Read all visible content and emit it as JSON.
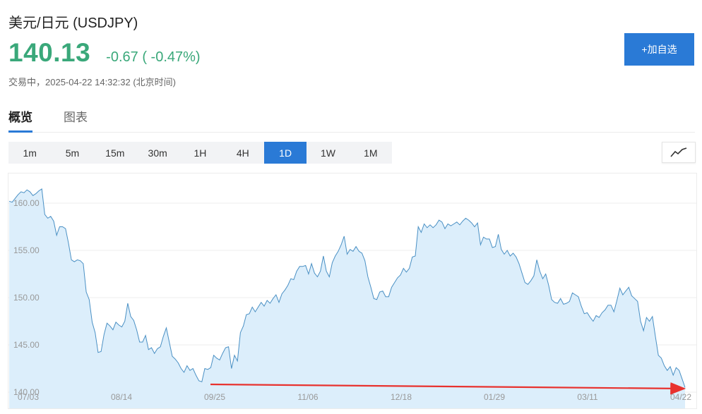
{
  "header": {
    "title": "美元/日元  (USDJPY)",
    "price": "140.13",
    "change": "-0.67 ( -0.47%)",
    "status": "交易中，2025-04-22 14:32:32 (北京时间)",
    "add_label": "+加自选"
  },
  "tabs": [
    {
      "label": "概览",
      "active": true
    },
    {
      "label": "图表",
      "active": false
    }
  ],
  "periods": [
    {
      "label": "1m"
    },
    {
      "label": "5m"
    },
    {
      "label": "15m"
    },
    {
      "label": "30m"
    },
    {
      "label": "1H"
    },
    {
      "label": "4H"
    },
    {
      "label": "1D",
      "active": true
    },
    {
      "label": "1W"
    },
    {
      "label": "1M"
    }
  ],
  "chart_type_icon": "line-chart-icon",
  "colors": {
    "up_green": "#3aa87a",
    "accent": "#2a7ad6",
    "line": "#4a90c4",
    "area": "#dceefb",
    "arrow": "#e8322e"
  },
  "chart_data": {
    "type": "area",
    "ylim": [
      140,
      162
    ],
    "y_ticks": [
      "160.00",
      "155.00",
      "150.00",
      "145.00",
      "140.00"
    ],
    "x_ticks": [
      "07/03",
      "08/14",
      "09/25",
      "11/06",
      "12/18",
      "01/29",
      "03/11",
      "04/22"
    ],
    "grid": true,
    "series": [
      {
        "values": [
          160.2,
          160.1,
          160.5,
          160.9,
          161.2,
          161.1,
          161.4,
          161.2,
          160.8,
          161.0,
          161.3,
          161.5,
          158.8,
          158.4,
          158.6,
          158.1,
          156.6,
          157.5,
          157.5,
          157.3,
          155.8,
          154.0,
          153.8,
          154.0,
          153.9,
          153.6,
          150.6,
          149.8,
          147.4,
          146.3,
          144.2,
          144.3,
          146.1,
          147.3,
          147.0,
          146.6,
          147.4,
          147.1,
          146.9,
          147.5,
          149.4,
          148.0,
          147.6,
          146.6,
          145.3,
          145.3,
          146.0,
          144.5,
          144.7,
          144.1,
          144.6,
          144.8,
          145.9,
          146.8,
          145.3,
          143.8,
          143.5,
          143.1,
          142.5,
          142.1,
          142.8,
          142.3,
          142.5,
          141.8,
          141.2,
          141.1,
          142.5,
          142.4,
          142.6,
          143.9,
          143.6,
          143.4,
          144.1,
          144.7,
          144.8,
          142.5,
          143.9,
          143.3,
          146.3,
          147.0,
          148.2,
          148.3,
          149.0,
          148.5,
          149.0,
          149.5,
          149.1,
          149.7,
          149.4,
          149.9,
          150.3,
          149.5,
          150.4,
          150.8,
          151.3,
          152.0,
          151.9,
          152.8,
          153.3,
          153.3,
          153.4,
          152.5,
          153.6,
          152.6,
          152.2,
          152.8,
          154.4,
          152.8,
          152.2,
          153.7,
          154.4,
          154.9,
          155.6,
          156.5,
          154.6,
          155.1,
          154.9,
          155.4,
          154.9,
          154.7,
          153.9,
          152.2,
          151.1,
          149.9,
          149.8,
          150.6,
          150.7,
          150.1,
          150.1,
          151.1,
          151.6,
          152.1,
          152.4,
          153.1,
          152.7,
          153.1,
          154.3,
          154.4,
          157.5,
          156.9,
          157.8,
          157.4,
          157.7,
          157.4,
          157.7,
          158.2,
          158.0,
          157.3,
          157.8,
          157.6,
          157.8,
          158.0,
          157.7,
          158.1,
          158.4,
          158.2,
          157.9,
          157.5,
          157.9,
          155.6,
          156.4,
          156.2,
          156.2,
          155.3,
          155.4,
          156.7,
          155.1,
          154.6,
          155.0,
          154.4,
          154.7,
          154.3,
          153.6,
          152.6,
          151.6,
          151.4,
          151.8,
          152.3,
          154.0,
          152.8,
          152.0,
          152.5,
          151.3,
          149.8,
          149.5,
          149.4,
          149.9,
          149.3,
          149.4,
          149.6,
          150.5,
          150.3,
          150.1,
          149.1,
          148.3,
          148.4,
          147.9,
          147.5,
          148.1,
          147.9,
          148.4,
          148.7,
          149.2,
          149.2,
          148.5,
          149.7,
          151.0,
          150.3,
          150.7,
          151.1,
          150.2,
          149.9,
          149.6,
          147.5,
          146.5,
          147.9,
          147.5,
          148.0,
          145.9,
          143.9,
          143.6,
          142.8,
          142.3,
          142.7,
          141.8,
          142.6,
          142.3,
          141.4,
          140.5
        ]
      }
    ],
    "annotations": [
      {
        "type": "arrow",
        "from": [
          "09/25",
          140.8
        ],
        "to": [
          "04/22",
          140.4
        ]
      }
    ]
  }
}
